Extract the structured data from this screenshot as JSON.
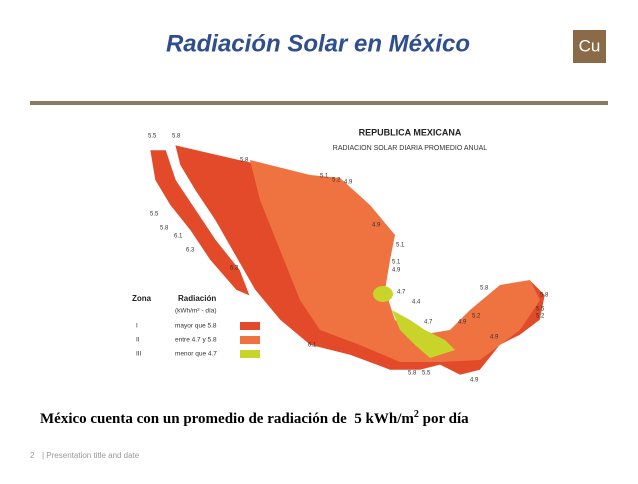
{
  "header": {
    "title": "Radiación Solar en México",
    "logo": "Cu"
  },
  "map": {
    "title": "REPUBLICA MEXICANA",
    "subtitle": "RADIACION SOLAR DIARIA PROMEDIO ANUAL",
    "labels": [
      "5.5",
      "5.8",
      "5.8",
      "5.1",
      "5.2",
      "4.9",
      "4.9",
      "5.1",
      "4.9",
      "5.1",
      "4.7",
      "4.4",
      "4.7",
      "5.8",
      "5.8",
      "5.5",
      "5.2",
      "5.2",
      "4.9",
      "4.9",
      "6.1",
      "5.8",
      "5.5",
      "6.3",
      "5.8",
      "5.5",
      "6.1",
      "6.3",
      "4.9"
    ],
    "legend": {
      "zone_header": "Zona",
      "radiation_header": "Radiación",
      "unit": "(kWh/m² - día)",
      "rows": [
        {
          "zone": "I",
          "label": "mayor que 5.8"
        },
        {
          "zone": "II",
          "label": "entre 4.7 y 5.8"
        },
        {
          "zone": "III",
          "label": "menor que 4.7"
        }
      ]
    }
  },
  "caption": {
    "text": "México cuenta con un promedio de radiación de  5 kWh/m",
    "superscript": "2",
    "suffix": " por día"
  },
  "footer": {
    "page": "2",
    "text": "| Presentation title and date"
  }
}
